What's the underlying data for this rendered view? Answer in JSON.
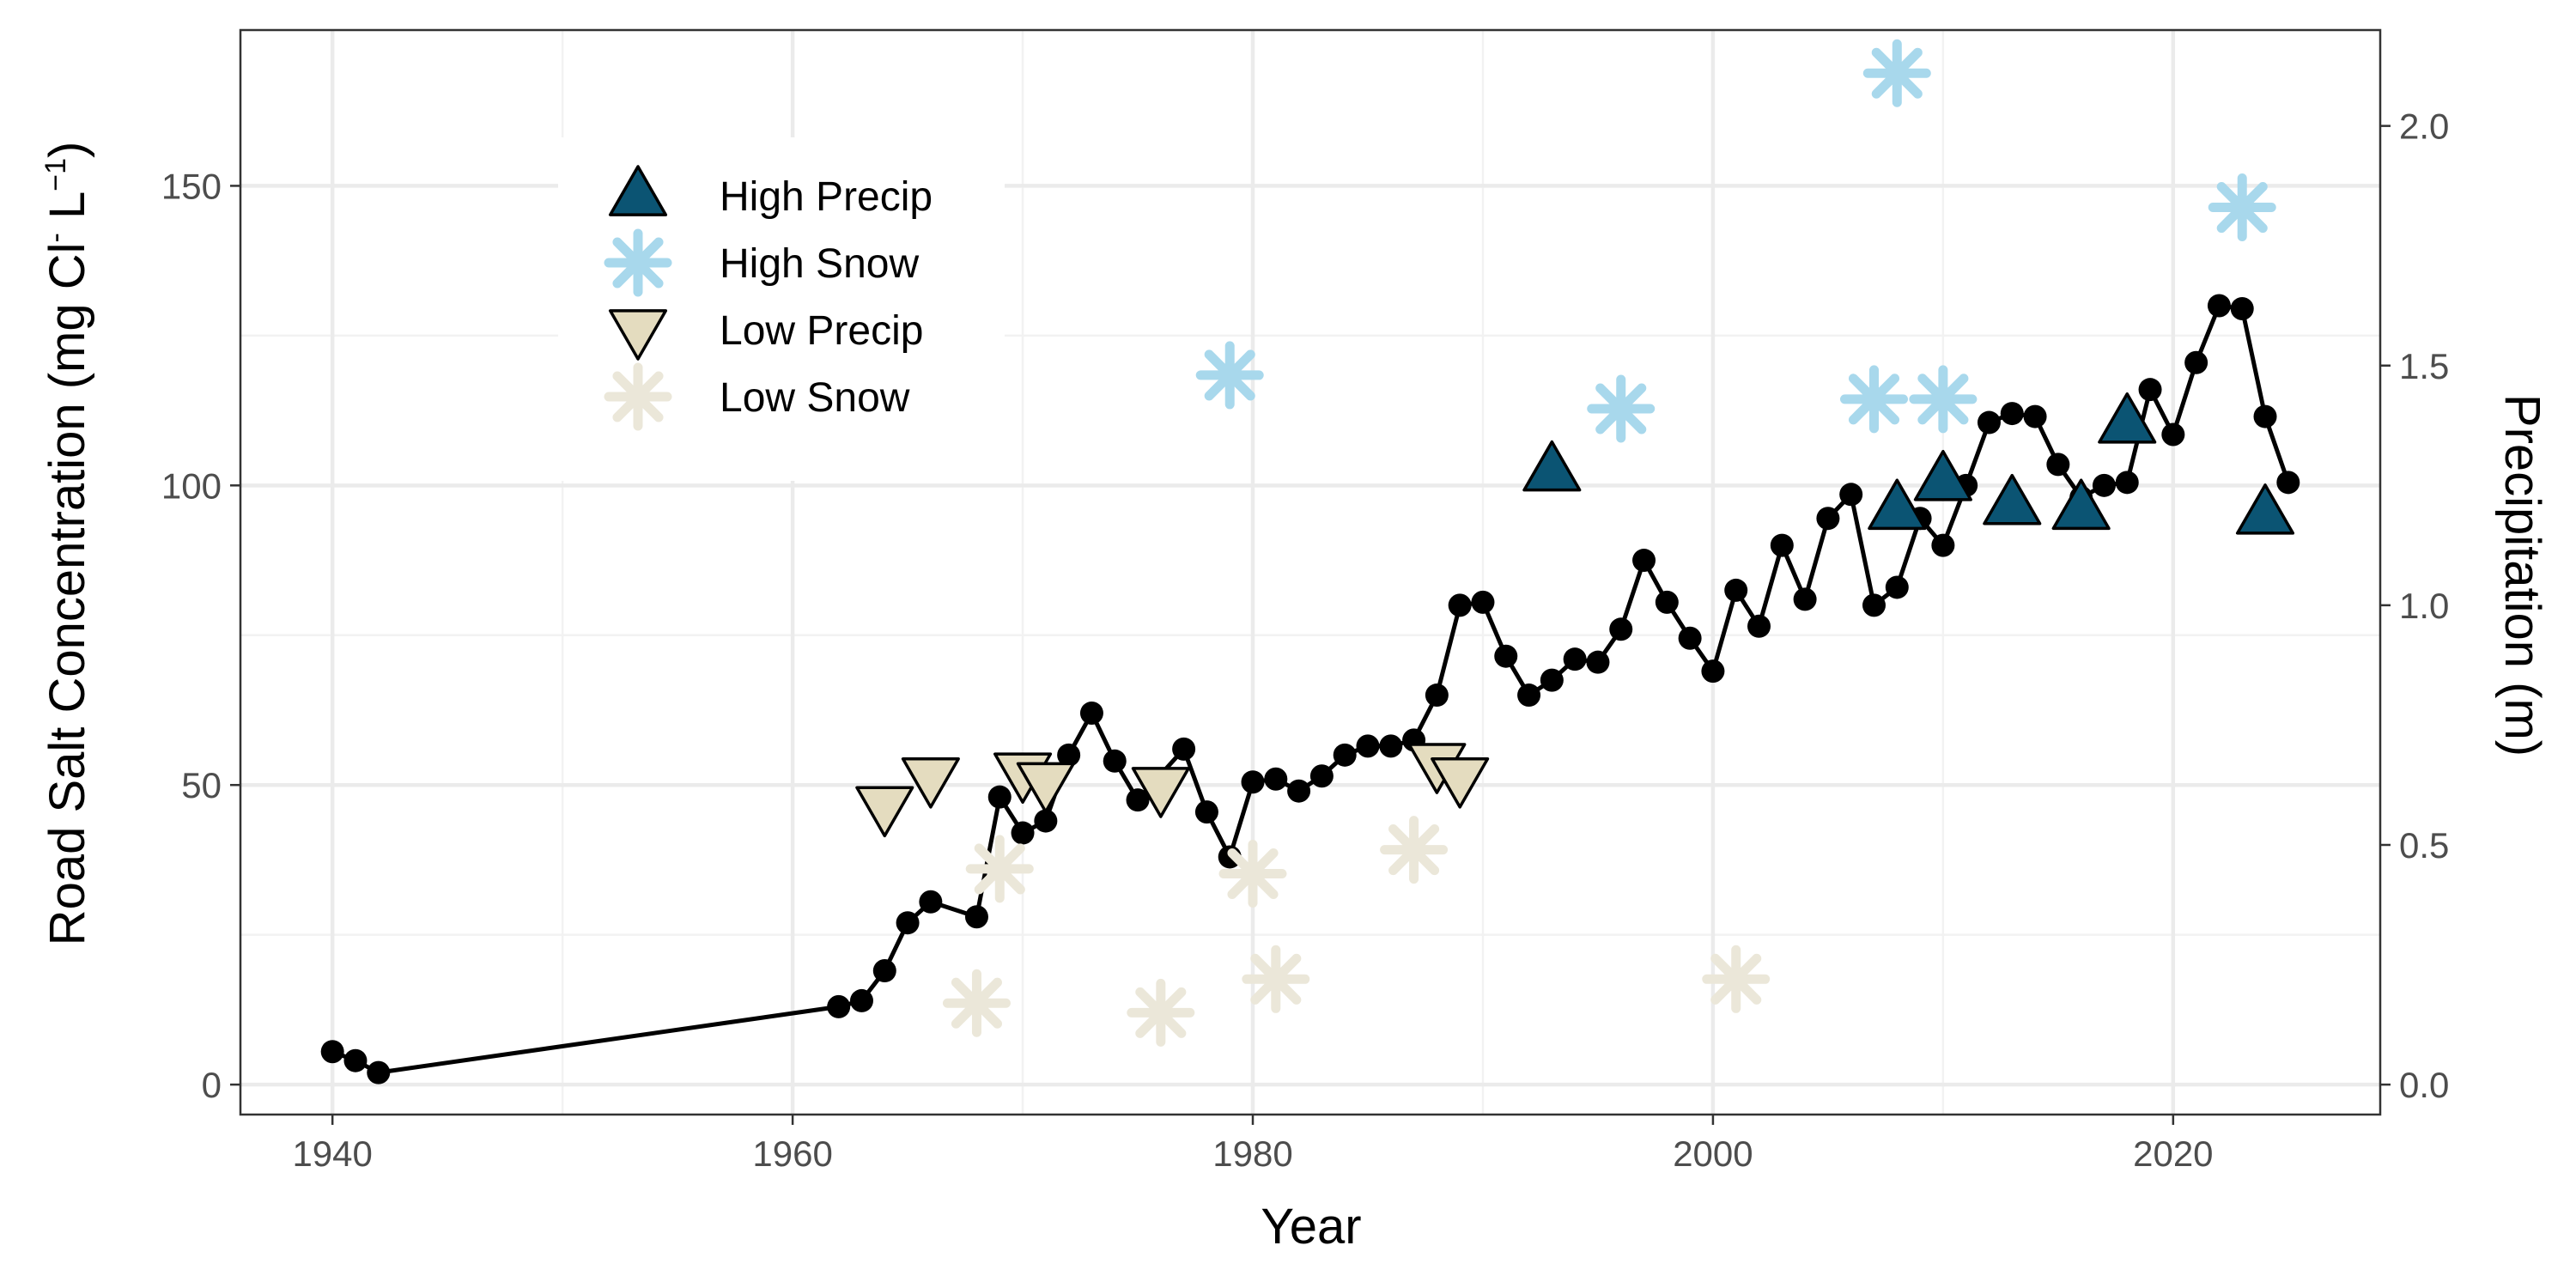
{
  "chart_data": {
    "type": "line",
    "xlabel": "Year",
    "ylabel": "Road Salt Concentration (mg Cl- L-1)",
    "ylabel_parts": {
      "prefix": "Road Salt Concentration (mg Cl",
      "sup1": "-",
      "mid": " L",
      "sup2": "−1",
      "suffix": ")"
    },
    "y2label": "Precipitation (m)",
    "xlim": [
      1936,
      2029
    ],
    "ylim": [
      -5,
      176
    ],
    "y2lim": [
      -0.0625,
      2.2
    ],
    "x_ticks": [
      1940,
      1960,
      1980,
      2000,
      2020
    ],
    "y_ticks": [
      0,
      50,
      100,
      150
    ],
    "y2_ticks": [
      0.0,
      0.5,
      1.0,
      1.5,
      2.0
    ],
    "y2_tick_labels": [
      "0.0",
      "0.5",
      "1.0",
      "1.5",
      "2.0"
    ],
    "grid": true,
    "legend_position": "top-left",
    "colors": {
      "line": "#000000",
      "high_precip": "#0b5473",
      "high_snow": "#a8d8ec",
      "low_precip": "#e4dcbf",
      "low_snow": "#ebe7d9",
      "grid": "#ebebeb",
      "grid_minor": "#f2f2f2",
      "panel_border": "#333333"
    },
    "legend": [
      {
        "label": "High Precip",
        "shape": "triangle-up",
        "series": "high_precip"
      },
      {
        "label": "High Snow",
        "shape": "asterisk",
        "series": "high_snow"
      },
      {
        "label": "Low Precip",
        "shape": "triangle-down",
        "series": "low_precip"
      },
      {
        "label": "Low Snow",
        "shape": "asterisk",
        "series": "low_snow"
      }
    ],
    "series": [
      {
        "name": "Road Salt Concentration",
        "axis": "left",
        "style": "line-points",
        "x": [
          1940,
          1941,
          1942,
          1962,
          1963,
          1964,
          1965,
          1966,
          1968,
          1969,
          1970,
          1971,
          1972,
          1973,
          1974,
          1975,
          1977,
          1978,
          1979,
          1980,
          1981,
          1982,
          1983,
          1984,
          1985,
          1986,
          1987,
          1988,
          1989,
          1990,
          1991,
          1992,
          1993,
          1994,
          1995,
          1996,
          1997,
          1998,
          1999,
          2000,
          2001,
          2002,
          2003,
          2004,
          2005,
          2006,
          2007,
          2008,
          2009,
          2010,
          2011,
          2012,
          2013,
          2014,
          2015,
          2016,
          2017,
          2018,
          2019,
          2020,
          2021,
          2022,
          2023,
          2024,
          2025
        ],
        "y": [
          5.5,
          4,
          2,
          13,
          14,
          19,
          27,
          30.5,
          28,
          48,
          42,
          44,
          55,
          62,
          54,
          47.5,
          56,
          45.5,
          38,
          50.5,
          51,
          49,
          51.5,
          55,
          56.5,
          56.5,
          57.5,
          65,
          80,
          80.5,
          71.5,
          65,
          67.5,
          71,
          70.5,
          76,
          87.5,
          80.5,
          74.5,
          69,
          82.5,
          76.5,
          90,
          81,
          94.5,
          98.5,
          80,
          83,
          94.5,
          90,
          100,
          110.5,
          112,
          111.5,
          103.5,
          98,
          100,
          100.5,
          116,
          108.5,
          120.5,
          130,
          129.5,
          111.5,
          100.5
        ]
      },
      {
        "name": "High Precip",
        "axis": "right",
        "x": [
          1993,
          2008,
          2010,
          2013,
          2016,
          2018,
          2024
        ],
        "y": [
          1.28,
          1.2,
          1.26,
          1.21,
          1.2,
          1.38,
          1.19
        ]
      },
      {
        "name": "High Snow",
        "axis": "right",
        "x": [
          1979,
          1996,
          2007,
          2008,
          2010,
          2023
        ],
        "y": [
          1.48,
          1.41,
          1.43,
          2.11,
          1.43,
          1.83
        ]
      },
      {
        "name": "Low Precip",
        "axis": "right",
        "x": [
          1964,
          1966,
          1970,
          1971,
          1976,
          1988,
          1989
        ],
        "y": [
          0.58,
          0.64,
          0.65,
          0.63,
          0.62,
          0.67,
          0.64
        ]
      },
      {
        "name": "Low Snow",
        "axis": "right",
        "x": [
          1968,
          1969,
          1976,
          1980,
          1981,
          1987,
          2001
        ],
        "y": [
          0.17,
          0.45,
          0.15,
          0.44,
          0.22,
          0.49,
          0.22
        ]
      }
    ]
  }
}
